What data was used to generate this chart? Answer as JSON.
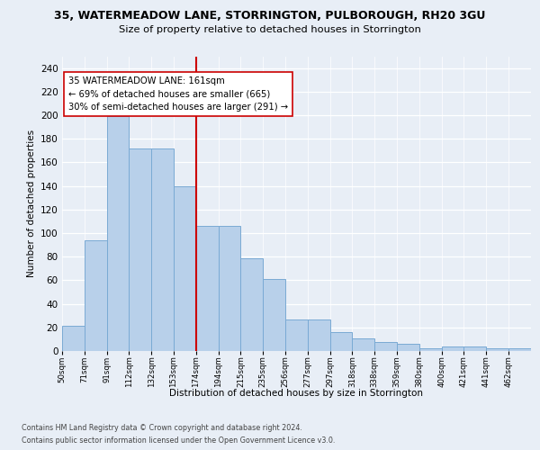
{
  "title1": "35, WATERMEADOW LANE, STORRINGTON, PULBOROUGH, RH20 3GU",
  "title2": "Size of property relative to detached houses in Storrington",
  "xlabel": "Distribution of detached houses by size in Storrington",
  "ylabel": "Number of detached properties",
  "bar_heights": [
    21,
    94,
    199,
    172,
    172,
    140,
    106,
    106,
    79,
    61,
    27,
    27,
    16,
    11,
    8,
    6,
    2,
    4,
    4,
    2,
    2
  ],
  "bin_labels": [
    "50sqm",
    "71sqm",
    "91sqm",
    "112sqm",
    "132sqm",
    "153sqm",
    "174sqm",
    "194sqm",
    "215sqm",
    "235sqm",
    "256sqm",
    "277sqm",
    "297sqm",
    "318sqm",
    "338sqm",
    "359sqm",
    "380sqm",
    "400sqm",
    "421sqm",
    "441sqm",
    "462sqm"
  ],
  "bar_color": "#b8d0ea",
  "bar_edge_color": "#7aaad4",
  "vline_color": "#cc0000",
  "vline_x_idx": 6,
  "annotation_line1": "35 WATERMEADOW LANE: 161sqm",
  "annotation_line2": "← 69% of detached houses are smaller (665)",
  "annotation_line3": "30% of semi-detached houses are larger (291) →",
  "footer1": "Contains HM Land Registry data © Crown copyright and database right 2024.",
  "footer2": "Contains public sector information licensed under the Open Government Licence v3.0.",
  "ylim_max": 250,
  "yticks": [
    0,
    20,
    40,
    60,
    80,
    100,
    120,
    140,
    160,
    180,
    200,
    220,
    240
  ],
  "bg_color": "#e8eef6",
  "grid_color": "#ffffff",
  "title1_fontsize": 9.0,
  "title2_fontsize": 8.2,
  "ylabel_fontsize": 7.5,
  "xlabel_fontsize": 7.5,
  "ytick_fontsize": 7.5,
  "xtick_fontsize": 6.2,
  "footer_fontsize": 5.8,
  "ann_fontsize": 7.2
}
